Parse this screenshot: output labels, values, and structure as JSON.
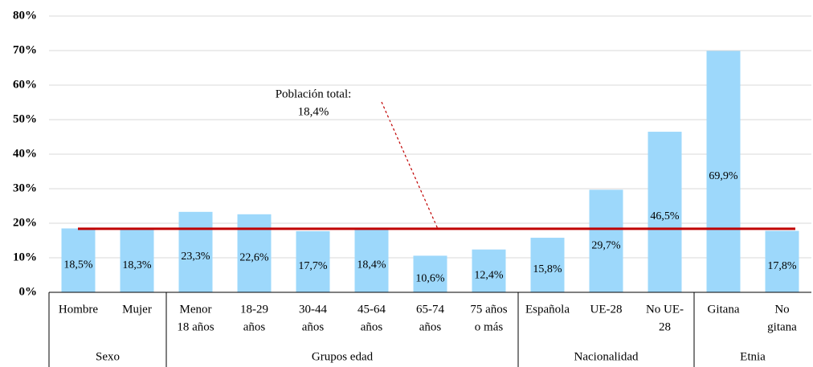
{
  "chart_data": {
    "type": "bar",
    "categories": [
      [
        "Hombre"
      ],
      [
        "Mujer"
      ],
      [
        "Menor",
        "18 años"
      ],
      [
        "18-29",
        "años"
      ],
      [
        "30-44",
        "años"
      ],
      [
        "45-64",
        "años"
      ],
      [
        "65-74",
        "años"
      ],
      [
        "75 años",
        "o más"
      ],
      [
        "Española"
      ],
      [
        "UE-28"
      ],
      [
        "No UE-",
        "28"
      ],
      [
        "Gitana"
      ],
      [
        "No",
        "gitana"
      ]
    ],
    "values": [
      18.5,
      18.3,
      23.3,
      22.6,
      17.7,
      18.4,
      10.6,
      12.4,
      15.8,
      29.7,
      46.5,
      69.9,
      17.8
    ],
    "value_labels": [
      "18,5%",
      "18,3%",
      "23,3%",
      "22,6%",
      "17,7%",
      "18,4%",
      "10,6%",
      "12,4%",
      "15,8%",
      "29,7%",
      "46,5%",
      "69,9%",
      "17,8%"
    ],
    "color": "#9dd8fb",
    "groups": [
      {
        "name": "Sexo",
        "start": 0,
        "end": 1
      },
      {
        "name": "Grupos edad",
        "start": 2,
        "end": 7
      },
      {
        "name": "Nacionalidad",
        "start": 8,
        "end": 10
      },
      {
        "name": "Etnia",
        "start": 11,
        "end": 12
      }
    ],
    "reference_line": {
      "value": 18.4,
      "color": "#c00000",
      "label": [
        "Población total:",
        "18,4%"
      ]
    },
    "ylim": [
      0,
      80
    ],
    "yticks": [
      {
        "value": 0,
        "label": "0%"
      },
      {
        "value": 10,
        "label": "10%"
      },
      {
        "value": 20,
        "label": "20%"
      },
      {
        "value": 30,
        "label": "30%"
      },
      {
        "value": 40,
        "label": "40%"
      },
      {
        "value": 50,
        "label": "50%"
      },
      {
        "value": 60,
        "label": "60%"
      },
      {
        "value": 70,
        "label": "70%"
      },
      {
        "value": 80,
        "label": "80%"
      }
    ],
    "grid": true
  }
}
